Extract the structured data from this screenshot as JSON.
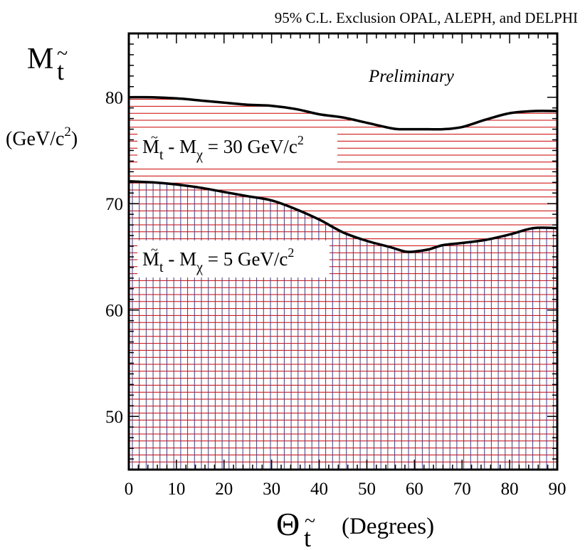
{
  "chart_data": {
    "type": "area",
    "title": "95%  C.L. Exclusion   OPAL, ALEPH, and DELPHI",
    "xlabel": {
      "symbol": "Θ",
      "subscript": "t",
      "subscript_accent": "~",
      "unit": "(Degrees)"
    },
    "ylabel": {
      "symbol": "M",
      "subscript": "t",
      "subscript_accent": "~",
      "unit_prefix": "(GeV/c",
      "unit_sup": "2",
      "unit_suffix": ")"
    },
    "xlim": [
      0,
      90
    ],
    "ylim": [
      45,
      86
    ],
    "x_ticks": [
      0,
      10,
      20,
      30,
      40,
      50,
      60,
      70,
      80,
      90
    ],
    "x_tick_labels": [
      "0",
      "10",
      "20",
      "30",
      "40",
      "50",
      "60",
      "70",
      "80",
      "90"
    ],
    "y_ticks": [
      50,
      60,
      70,
      80
    ],
    "y_tick_labels": [
      "50",
      "60",
      "70",
      "80"
    ],
    "grid": false,
    "series": [
      {
        "hatch": "horizontal",
        "color": "#cc0000",
        "x": [
          0,
          5,
          10,
          15,
          20,
          25,
          30,
          35,
          40,
          45,
          50,
          55,
          57,
          60,
          63,
          66,
          70,
          75,
          80,
          85,
          90
        ],
        "y": [
          80.0,
          80.0,
          79.9,
          79.7,
          79.5,
          79.3,
          79.2,
          78.9,
          78.4,
          78.1,
          77.6,
          77.1,
          77.0,
          77.0,
          77.0,
          77.0,
          77.2,
          77.9,
          78.5,
          78.7,
          78.7
        ]
      },
      {
        "hatch": "cross",
        "color": "#3a3a99",
        "x": [
          0,
          5,
          10,
          15,
          20,
          25,
          30,
          35,
          40,
          45,
          50,
          55,
          58,
          60,
          63,
          66,
          70,
          75,
          80,
          85,
          90
        ],
        "y": [
          72.1,
          72.0,
          71.8,
          71.5,
          71.1,
          70.7,
          70.3,
          69.5,
          68.5,
          67.3,
          66.5,
          65.9,
          65.5,
          65.5,
          65.7,
          66.1,
          66.3,
          66.6,
          67.1,
          67.7,
          67.7
        ]
      }
    ],
    "annotations": [
      {
        "text_main": "M",
        "text_main_sub": "t",
        "text_mid": " - M",
        "text_mid_sub": "χ",
        "text_tail": " = 30 GeV/c",
        "text_sup": "2"
      },
      {
        "text_main": "M",
        "text_main_sub": "t",
        "text_mid": " - M",
        "text_mid_sub": "χ",
        "text_tail": " = 5 GeV/c",
        "text_sup": "2"
      }
    ],
    "note": "Preliminary"
  }
}
